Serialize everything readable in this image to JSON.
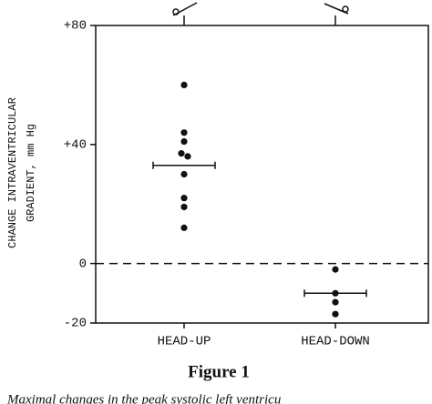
{
  "chart_data": {
    "type": "dot",
    "y_label_lines": [
      "CHANGE INTRAVENTRICULAR",
      "GRADIENT, mm Hg"
    ],
    "categories": [
      "HEAD-UP",
      "HEAD-DOWN"
    ],
    "points": [
      [
        60,
        44,
        41,
        37,
        36,
        30,
        22,
        19,
        12
      ],
      [
        -2,
        -10,
        -13,
        -17
      ]
    ],
    "means": [
      33,
      -10
    ],
    "color": "#111111",
    "reference_line": 0,
    "ylim": [
      -20,
      80
    ],
    "yticks": [
      {
        "value": 80,
        "label": "+80"
      },
      {
        "value": 40,
        "label": "+40"
      },
      0,
      -20
    ],
    "caption": "Figure 1",
    "note": "Maximal changes in the peak systolic left ventricu"
  }
}
